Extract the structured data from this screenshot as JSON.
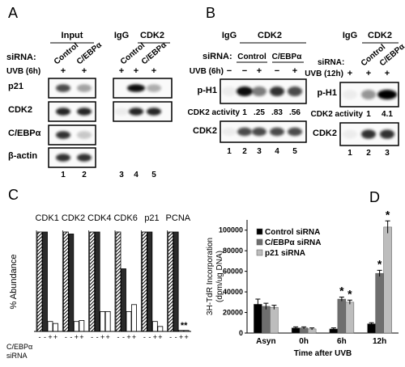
{
  "panels": {
    "A": {
      "label": "A",
      "groups": [
        "Input",
        "IgG",
        "CDK2"
      ],
      "sirna_label": "siRNA:",
      "sirna": [
        "Control",
        "C/EBPα",
        "Control",
        "C/EBPα"
      ],
      "uvb_label": "UVB (6h)",
      "uvb": [
        "+",
        "+",
        "+",
        "+",
        "+"
      ],
      "rows": [
        "p21",
        "CDK2",
        "C/EBPα",
        "β-actin"
      ],
      "lanes": [
        "1",
        "2",
        "3",
        "4",
        "5"
      ]
    },
    "B": {
      "label": "B",
      "left": {
        "groups": [
          "IgG",
          "CDK2"
        ],
        "sirna_label": "siRNA:",
        "sirna": [
          "Control",
          "C/EBPα"
        ],
        "uvb_label": "UVB (6h)",
        "uvb": [
          "−",
          "−",
          "+",
          "−",
          "+"
        ],
        "rows": [
          "p-H1",
          "CDK2"
        ],
        "activity_label": "CDK2 activity",
        "activity": [
          "1",
          ".25",
          ".83",
          ".56"
        ],
        "lanes": [
          "1",
          "2",
          "3",
          "4",
          "5"
        ]
      },
      "right": {
        "groups": [
          "IgG",
          "CDK2"
        ],
        "sirna_label": "siRNA:",
        "sirna": [
          "Control",
          "C/EBPα"
        ],
        "uvb_label": "UVB (12h)",
        "uvb": [
          "+",
          "+",
          "+"
        ],
        "rows": [
          "p-H1",
          "CDK2"
        ],
        "activity_label": "CDK2 activity",
        "activity": [
          "1",
          "4.1"
        ],
        "lanes": [
          "1",
          "2",
          "3"
        ]
      }
    }
  },
  "chart_data": [
    {
      "type": "bar",
      "panel_label": "C",
      "ylabel": "% Abundance",
      "categories": [
        "CDK1",
        "CDK2",
        "CDK4",
        "CDK6",
        "p21",
        "PCNA"
      ],
      "sub_labels": [
        "-",
        "-",
        "+",
        "+"
      ],
      "xlabel": [
        "C/EBPα",
        "siRNA"
      ],
      "ylim": [
        0,
        100
      ],
      "series": [
        {
          "color": "#4a4a4a",
          "values": [
            100,
            100,
            100,
            100,
            100,
            100
          ]
        },
        {
          "color": "#2a2a2a",
          "values": [
            100,
            98,
            100,
            63,
            100,
            100
          ]
        },
        {
          "color": "#ffffff",
          "values": [
            10,
            10,
            20,
            20,
            10,
            1
          ]
        },
        {
          "color": "#ffffff",
          "values": [
            8,
            11,
            20,
            27,
            5,
            1
          ],
          "markers": [
            null,
            null,
            null,
            null,
            null,
            "**"
          ]
        }
      ]
    },
    {
      "type": "bar",
      "panel_label": "D",
      "ylabel": [
        "3H-TdR Incorporation",
        "(dpm/ug DNA)"
      ],
      "xlabel": "Time after UVB",
      "categories": [
        "Asyn",
        "0h",
        "6h",
        "12h"
      ],
      "ylim": [
        0,
        110000
      ],
      "yticks": [
        0,
        20000,
        40000,
        60000,
        80000,
        100000
      ],
      "legend": "top-left",
      "series": [
        {
          "name": "Control siRNA",
          "color": "#000000",
          "values": [
            28000,
            5000,
            4000,
            9000
          ],
          "errors": [
            5000,
            1000,
            1000,
            1000
          ]
        },
        {
          "name": "C/EBPα siRNA",
          "color": "#6e6e6e",
          "values": [
            26000,
            5000,
            33000,
            58000
          ],
          "errors": [
            3000,
            1000,
            2000,
            3000
          ],
          "markers": [
            null,
            null,
            "*",
            "*"
          ]
        },
        {
          "name": "p21 siRNA",
          "color": "#bdbdbd",
          "values": [
            25000,
            4000,
            30000,
            103000
          ],
          "errors": [
            2000,
            1000,
            2000,
            6000
          ],
          "markers": [
            null,
            null,
            "*",
            "*"
          ]
        }
      ]
    }
  ]
}
